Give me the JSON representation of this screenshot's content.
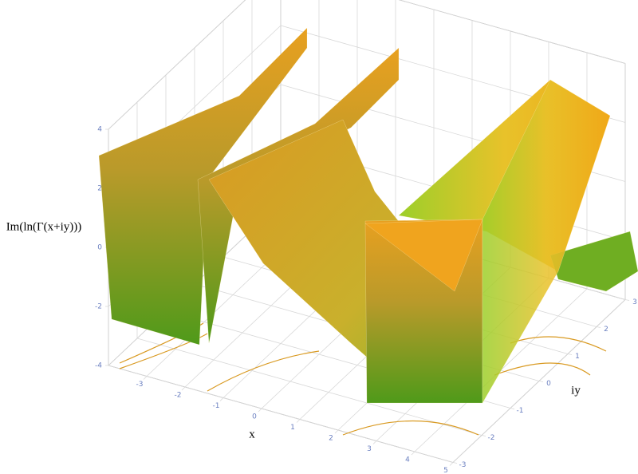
{
  "chart_data": {
    "type": "surface",
    "xlabel": "x",
    "ylabel": "iy",
    "zlabel": "Im(ln(Γ(x+iy)))",
    "xlim": [
      -4,
      5
    ],
    "xticks": [
      -3,
      -2,
      -1,
      0,
      1,
      2,
      3,
      4,
      5
    ],
    "ylim": [
      -3,
      3
    ],
    "yticks": [
      -3,
      -2,
      -1,
      0,
      1,
      2,
      3
    ],
    "zlim": [
      -4,
      4
    ],
    "zticks": [
      -4,
      -2,
      0,
      2,
      4
    ],
    "grid": true
  }
}
